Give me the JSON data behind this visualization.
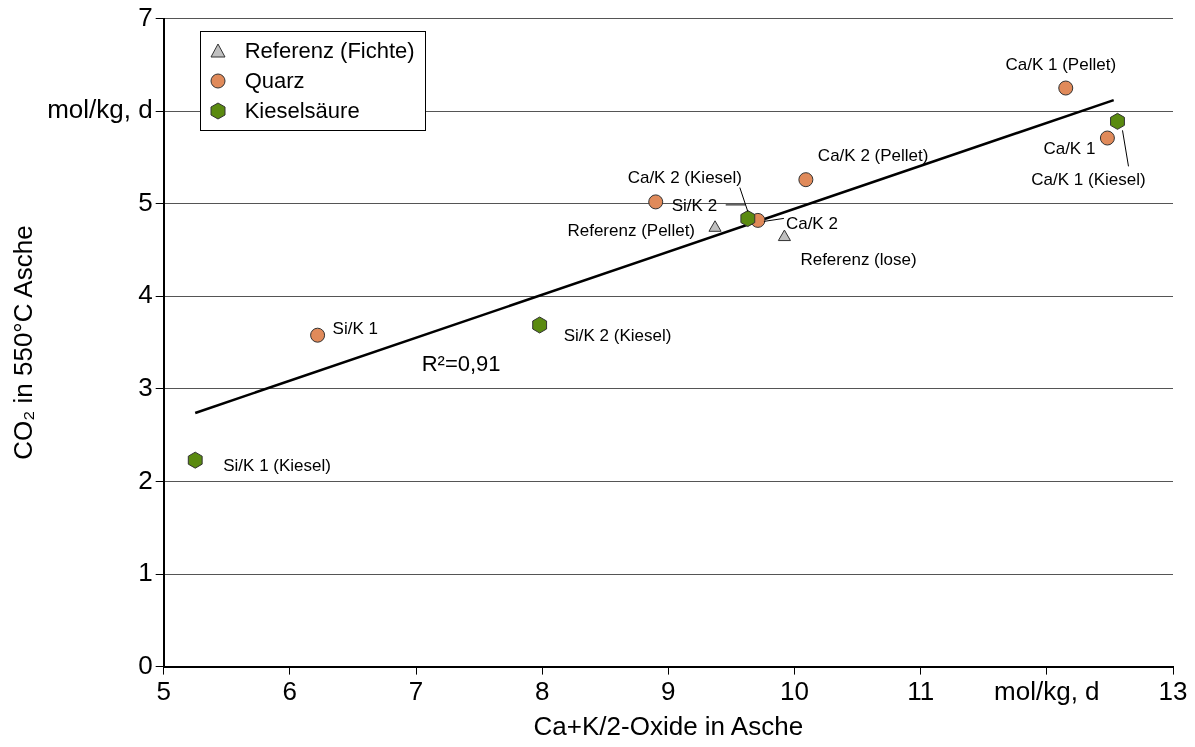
{
  "chart_data": {
    "type": "scatter",
    "xlabel": "Ca+K/2-Oxide in Asche",
    "ylabel": "CO₂ in 550°C Asche",
    "xlim": [
      5,
      13
    ],
    "xticks": [
      5,
      6,
      7,
      8,
      9,
      10,
      11,
      {
        "value": 12,
        "label": "mol/kg, d"
      },
      13
    ],
    "ylim": [
      0,
      7
    ],
    "yticks": [
      0,
      1,
      2,
      3,
      4,
      5,
      {
        "value": 6,
        "label": "mol/kg, d"
      },
      7
    ],
    "grid": "y",
    "legend": "top left",
    "series": [
      {
        "name": "Referenz (Fichte)",
        "color": "#c0c0c0",
        "marker": "triangle",
        "x": [
          9.37,
          9.92
        ],
        "values": [
          4.74,
          4.64
        ]
      },
      {
        "name": "Quarz",
        "color": "#e08a5a",
        "marker": "circle",
        "x": [
          6.22,
          8.9,
          9.71,
          10.09,
          12.15,
          12.48
        ],
        "values": [
          3.58,
          5.02,
          4.82,
          5.26,
          6.25,
          5.71
        ]
      },
      {
        "name": "Kieselsäure",
        "color": "#5a8a10",
        "x": [
          5.25,
          7.98,
          9.63,
          12.56
        ],
        "values": [
          2.23,
          3.69,
          4.84,
          5.89
        ]
      },
      {
        "type": "line",
        "color": "#000000",
        "marker": "none",
        "x": [
          5.25,
          12.53
        ],
        "values": [
          2.74,
          6.12
        ]
      }
    ],
    "annotations": [
      {
        "text": "Referenz (Pellet)",
        "x": 9.37,
        "y": 4.74
      },
      {
        "text": "Referenz (lose)",
        "x": 9.92,
        "y": 4.64
      },
      {
        "text": "Si/K 1",
        "x": 6.22,
        "y": 3.58
      },
      {
        "text": "Si/K 2",
        "x": 8.9,
        "y": 5.02
      },
      {
        "text": "Ca/K 2",
        "x": 9.71,
        "y": 4.82
      },
      {
        "text": "Ca/K 2 (Pellet)",
        "x": 10.09,
        "y": 5.26
      },
      {
        "text": "Ca/K 1 (Pellet)",
        "x": 12.15,
        "y": 6.25
      },
      {
        "text": "Ca/K 1",
        "x": 12.48,
        "y": 5.71
      },
      {
        "text": "Si/K 1 (Kiesel)",
        "x": 5.25,
        "y": 2.23
      },
      {
        "text": "Si/K 2 (Kiesel)",
        "x": 7.98,
        "y": 3.69
      },
      {
        "text": "Ca/K 2 (Kiesel)",
        "x": 9.63,
        "y": 4.84
      },
      {
        "text": "Ca/K 1 (Kiesel)",
        "x": 12.56,
        "y": 5.89
      },
      "R²=0,91"
    ]
  }
}
